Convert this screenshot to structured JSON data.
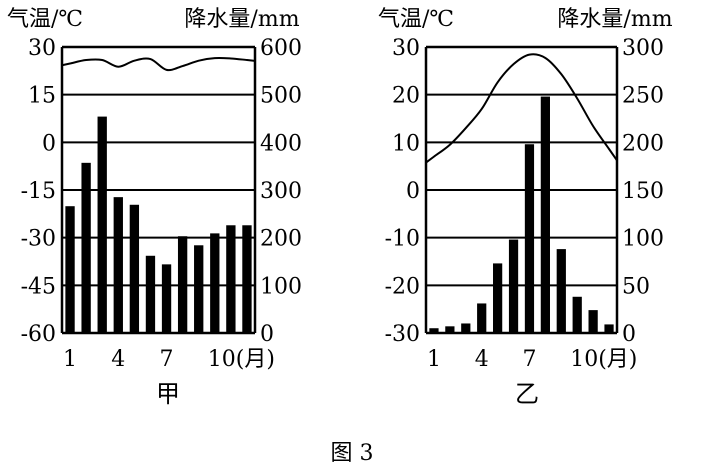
{
  "figure_caption": "图 3",
  "chart_data": [
    {
      "type": "bar+line",
      "name": "甲",
      "left_axis_label": "气温/℃",
      "right_axis_label": "降水量/mm",
      "temp_ticks": [
        "30",
        "15",
        "0",
        "-15",
        "-30",
        "-45",
        "-60"
      ],
      "temp_range": [
        -60,
        30
      ],
      "precip_ticks": [
        "600",
        "500",
        "400",
        "300",
        "200",
        "100",
        "0"
      ],
      "precip_range": [
        0,
        600
      ],
      "x_ticks": [
        {
          "month": 1,
          "label": "1"
        },
        {
          "month": 4,
          "label": "4"
        },
        {
          "month": 7,
          "label": "7"
        },
        {
          "month": 10,
          "label": "10(月)"
        }
      ],
      "months": [
        1,
        2,
        3,
        4,
        5,
        6,
        7,
        8,
        9,
        10,
        11,
        12
      ],
      "precipitation": [
        266,
        357,
        454,
        285,
        269,
        162,
        144,
        203,
        184,
        209,
        226,
        226
      ],
      "temperature": [
        24.8,
        25.9,
        25.9,
        23.8,
        25.7,
        26.2,
        22.8,
        24.0,
        25.7,
        26.5,
        26.4,
        25.9
      ],
      "grid": "horizontal"
    },
    {
      "type": "bar+line",
      "name": "乙",
      "left_axis_label": "气温/℃",
      "right_axis_label": "降水量/mm",
      "temp_ticks": [
        "30",
        "20",
        "10",
        "0",
        "-10",
        "-20",
        "-30"
      ],
      "temp_range": [
        -30,
        30
      ],
      "precip_ticks": [
        "300",
        "250",
        "200",
        "150",
        "100",
        "50",
        "0"
      ],
      "precip_range": [
        0,
        300
      ],
      "x_ticks": [
        {
          "month": 1,
          "label": "1"
        },
        {
          "month": 4,
          "label": "4"
        },
        {
          "month": 7,
          "label": "7"
        },
        {
          "month": 10,
          "label": "10(月)"
        }
      ],
      "months": [
        1,
        2,
        3,
        4,
        5,
        6,
        7,
        8,
        9,
        10,
        11,
        12
      ],
      "precipitation": [
        5,
        7,
        10,
        31,
        73,
        98,
        198,
        248,
        88,
        38,
        24,
        9
      ],
      "temperature": [
        7,
        9.5,
        13,
        17,
        22.6,
        26.4,
        28.4,
        27.7,
        24.3,
        19.2,
        13.4,
        8.6
      ],
      "grid": "horizontal"
    }
  ]
}
